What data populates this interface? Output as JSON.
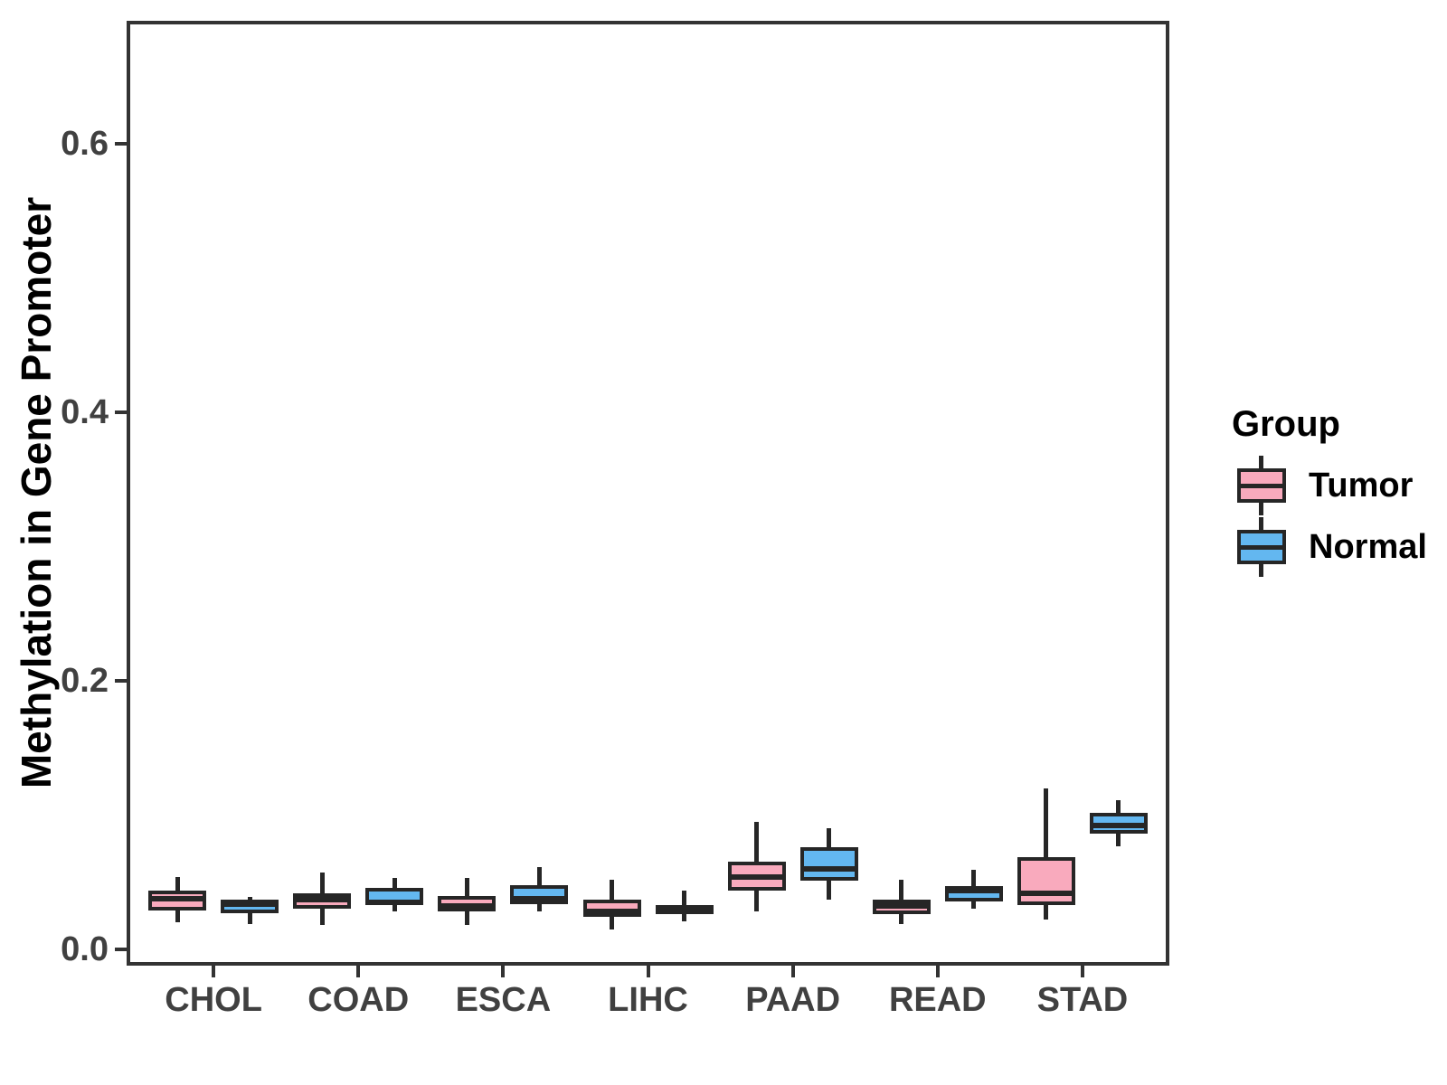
{
  "chart_data": {
    "type": "boxplot",
    "title": "",
    "xlabel": "",
    "ylabel": "Methylation in Gene Promoter",
    "categories": [
      "CHOL",
      "COAD",
      "ESCA",
      "LIHC",
      "PAAD",
      "READ",
      "STAD"
    ],
    "y_ticks": [
      {
        "value": 0.0,
        "label": "0.0"
      },
      {
        "value": 0.2,
        "label": "0.2"
      },
      {
        "value": 0.4,
        "label": "0.4"
      },
      {
        "value": 0.6,
        "label": "0.6"
      }
    ],
    "ylim": [
      -0.012,
      0.692
    ],
    "grid": false,
    "legend": {
      "title": "Group",
      "position": "right",
      "entries": [
        {
          "label": "Tumor",
          "color": "#F9AABD"
        },
        {
          "label": "Normal",
          "color": "#63B7F0"
        }
      ]
    },
    "style": {
      "box_border_color": "#262626",
      "axis_color": "#333333",
      "tick_label_color": "#404040",
      "tumor_fill": "#F9AABD",
      "normal_fill": "#63B7F0"
    },
    "series": [
      {
        "name": "Tumor",
        "color": "#F9AABD",
        "boxes": [
          {
            "category": "CHOL",
            "min": 0.02,
            "q1": 0.029,
            "median": 0.038,
            "q3": 0.044,
            "max": 0.054
          },
          {
            "category": "COAD",
            "min": 0.018,
            "q1": 0.03,
            "median": 0.037,
            "q3": 0.042,
            "max": 0.057
          },
          {
            "category": "ESCA",
            "min": 0.018,
            "q1": 0.028,
            "median": 0.032,
            "q3": 0.04,
            "max": 0.053
          },
          {
            "category": "LIHC",
            "min": 0.015,
            "q1": 0.024,
            "median": 0.028,
            "q3": 0.037,
            "max": 0.052
          },
          {
            "category": "PAAD",
            "min": 0.028,
            "q1": 0.044,
            "median": 0.054,
            "q3": 0.065,
            "max": 0.095
          },
          {
            "category": "READ",
            "min": 0.019,
            "q1": 0.026,
            "median": 0.032,
            "q3": 0.037,
            "max": 0.052
          },
          {
            "category": "STAD",
            "min": 0.022,
            "q1": 0.033,
            "median": 0.042,
            "q3": 0.069,
            "max": 0.12
          }
        ]
      },
      {
        "name": "Normal",
        "color": "#63B7F0",
        "boxes": [
          {
            "category": "CHOL",
            "min": 0.019,
            "q1": 0.027,
            "median": 0.034,
            "q3": 0.037,
            "max": 0.039
          },
          {
            "category": "COAD",
            "min": 0.028,
            "q1": 0.034,
            "median": 0.035,
            "q3": 0.046,
            "max": 0.053
          },
          {
            "category": "ESCA",
            "min": 0.028,
            "q1": 0.034,
            "median": 0.038,
            "q3": 0.048,
            "max": 0.061
          },
          {
            "category": "LIHC",
            "min": 0.021,
            "q1": 0.026,
            "median": 0.029,
            "q3": 0.033,
            "max": 0.044
          },
          {
            "category": "PAAD",
            "min": 0.037,
            "q1": 0.051,
            "median": 0.06,
            "q3": 0.076,
            "max": 0.09
          },
          {
            "category": "READ",
            "min": 0.03,
            "q1": 0.036,
            "median": 0.044,
            "q3": 0.047,
            "max": 0.059
          },
          {
            "category": "STAD",
            "min": 0.077,
            "q1": 0.086,
            "median": 0.092,
            "q3": 0.102,
            "max": 0.111
          }
        ]
      }
    ]
  }
}
